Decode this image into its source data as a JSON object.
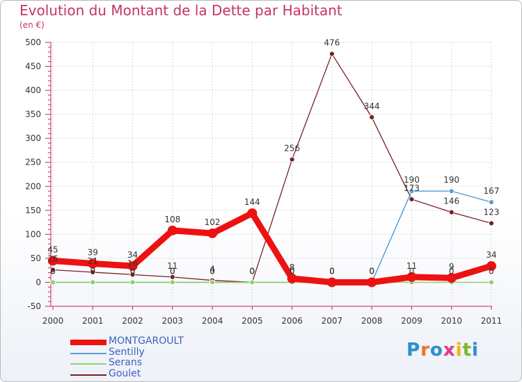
{
  "title": "Evolution du Montant de la Dette par Habitant",
  "subtitle": "(en €)",
  "logo": {
    "letters": [
      "P",
      "r",
      "o",
      "x",
      "i",
      "t",
      "i"
    ],
    "colors": [
      "#2b8fd0",
      "#e87722",
      "#2b8fd0",
      "#e03a8f",
      "#f2b705",
      "#7cb82f",
      "#2b8fd0"
    ]
  },
  "chart_data": {
    "type": "line",
    "title": "Evolution du Montant de la Dette par Habitant",
    "ylabel": "(en €)",
    "ylim": [
      -50,
      500
    ],
    "yticks": [
      "-50",
      "0",
      "50",
      "100",
      "150",
      "200",
      "250",
      "300",
      "350",
      "400",
      "450",
      "500"
    ],
    "categories": [
      "2000",
      "2001",
      "2002",
      "2003",
      "2004",
      "2005",
      "2006",
      "2007",
      "2008",
      "2009",
      "2010",
      "2011"
    ],
    "series": [
      {
        "name": "MONTGAROULT",
        "color": "#ee1111",
        "values": [
          45,
          39,
          34,
          108,
          102,
          144,
          8,
          0,
          0,
          11,
          9,
          34
        ],
        "labels": [
          "45",
          "39",
          "34",
          "108",
          "102",
          "144",
          "8",
          "0",
          "0",
          "11",
          "9",
          "34"
        ]
      },
      {
        "name": "Sentilly",
        "color": "#5a9fd4",
        "values": [
          0,
          0,
          0,
          0,
          0,
          0,
          0,
          0,
          0,
          190,
          190,
          167
        ],
        "labels": [
          "0",
          "0",
          "0",
          "0",
          "0",
          "0",
          "0",
          "0",
          "0",
          "190",
          "190",
          "167"
        ]
      },
      {
        "name": "Serans",
        "color": "#8fd16a",
        "values": [
          0,
          0,
          0,
          0,
          0,
          0,
          0,
          0,
          0,
          0,
          0,
          0
        ],
        "labels": [
          "0",
          "0",
          "0",
          "0",
          "0",
          "0",
          "0",
          "0",
          "0",
          "0",
          "0",
          "0"
        ]
      },
      {
        "name": "Goulet",
        "color": "#7a1e24",
        "values": [
          26,
          21,
          16,
          11,
          4,
          0,
          256,
          476,
          344,
          173,
          146,
          123
        ],
        "labels": [
          "26",
          "21",
          "16",
          "11",
          "4",
          "0",
          "256",
          "476",
          "344",
          "173",
          "146",
          "123"
        ]
      }
    ]
  }
}
